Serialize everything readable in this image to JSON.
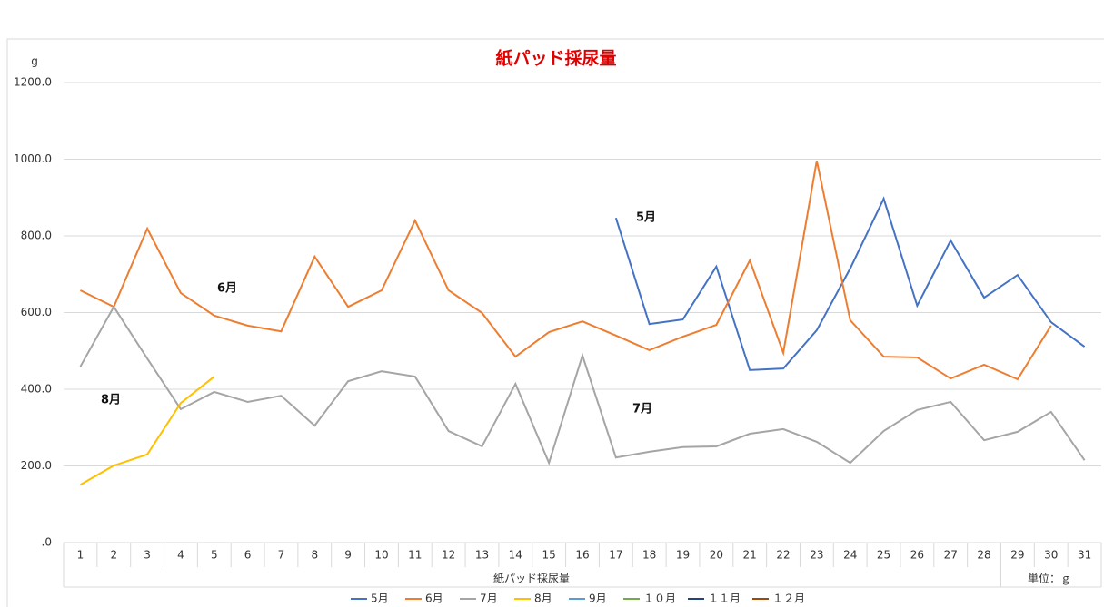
{
  "chart_data": {
    "type": "line",
    "title": "紙パッド採尿量",
    "y_unit": "g",
    "x_label": "紙パッド採尿量",
    "unit_note": "単位：ｇ",
    "categories": [
      "1",
      "2",
      "3",
      "4",
      "5",
      "6",
      "7",
      "8",
      "9",
      "10",
      "11",
      "12",
      "13",
      "14",
      "15",
      "16",
      "17",
      "18",
      "19",
      "20",
      "21",
      "22",
      "23",
      "24",
      "25",
      "26",
      "27",
      "28",
      "29",
      "30",
      "31"
    ],
    "ylim": [
      0,
      1200
    ],
    "yticks": [
      {
        "value": 0,
        "label": ".0"
      },
      {
        "value": 200,
        "label": "200.0"
      },
      {
        "value": 400,
        "label": "400.0"
      },
      {
        "value": 600,
        "label": "600.0"
      },
      {
        "value": 800,
        "label": "800.0"
      },
      {
        "value": 1000,
        "label": "1000.0"
      },
      {
        "value": 1200,
        "label": "1200.0"
      }
    ],
    "grid": true,
    "legend": "bottom",
    "series": [
      {
        "name": "5月",
        "color": "#4472c4",
        "values": [
          null,
          null,
          null,
          null,
          null,
          null,
          null,
          null,
          null,
          null,
          null,
          null,
          null,
          null,
          null,
          null,
          847,
          570,
          582,
          720,
          450,
          454,
          554,
          715,
          897,
          618,
          788,
          639,
          698,
          575,
          511
        ]
      },
      {
        "name": "6月",
        "color": "#ed7d31",
        "values": [
          658,
          615,
          819,
          651,
          592,
          566,
          551,
          746,
          615,
          658,
          840,
          658,
          599,
          485,
          549,
          577,
          540,
          502,
          537,
          568,
          736,
          495,
          996,
          580,
          485,
          483,
          428,
          464,
          426,
          566,
          null
        ]
      },
      {
        "name": "7月",
        "color": "#a5a5a5",
        "values": [
          459,
          615,
          480,
          348,
          393,
          367,
          383,
          305,
          421,
          447,
          433,
          291,
          251,
          414,
          208,
          488,
          222,
          237,
          249,
          251,
          284,
          296,
          263,
          208,
          291,
          346,
          367,
          267,
          289,
          341,
          215
        ]
      },
      {
        "name": "8月",
        "color": "#ffc000",
        "values": [
          151,
          201,
          230,
          364,
          433,
          null,
          null,
          null,
          null,
          null,
          null,
          null,
          null,
          null,
          null,
          null,
          null,
          null,
          null,
          null,
          null,
          null,
          null,
          null,
          null,
          null,
          null,
          null,
          null,
          null,
          null
        ]
      },
      {
        "name": "9月",
        "color": "#5b9bd5",
        "values": [
          null,
          null,
          null,
          null,
          null,
          null,
          null,
          null,
          null,
          null,
          null,
          null,
          null,
          null,
          null,
          null,
          null,
          null,
          null,
          null,
          null,
          null,
          null,
          null,
          null,
          null,
          null,
          null,
          null,
          null,
          null
        ]
      },
      {
        "name": "１０月",
        "color": "#70ad47",
        "values": [
          null,
          null,
          null,
          null,
          null,
          null,
          null,
          null,
          null,
          null,
          null,
          null,
          null,
          null,
          null,
          null,
          null,
          null,
          null,
          null,
          null,
          null,
          null,
          null,
          null,
          null,
          null,
          null,
          null,
          null,
          null
        ]
      },
      {
        "name": "１１月",
        "color": "#264478",
        "values": [
          null,
          null,
          null,
          null,
          null,
          null,
          null,
          null,
          null,
          null,
          null,
          null,
          null,
          null,
          null,
          null,
          null,
          null,
          null,
          null,
          null,
          null,
          null,
          null,
          null,
          null,
          null,
          null,
          null,
          null,
          null
        ]
      },
      {
        "name": "１２月",
        "color": "#9e480e",
        "values": [
          null,
          null,
          null,
          null,
          null,
          null,
          null,
          null,
          null,
          null,
          null,
          null,
          null,
          null,
          null,
          null,
          null,
          null,
          null,
          null,
          null,
          null,
          null,
          null,
          null,
          null,
          null,
          null,
          null,
          null,
          null
        ]
      }
    ],
    "annotations": [
      "5月",
      "6月",
      "8月",
      "7月"
    ]
  }
}
